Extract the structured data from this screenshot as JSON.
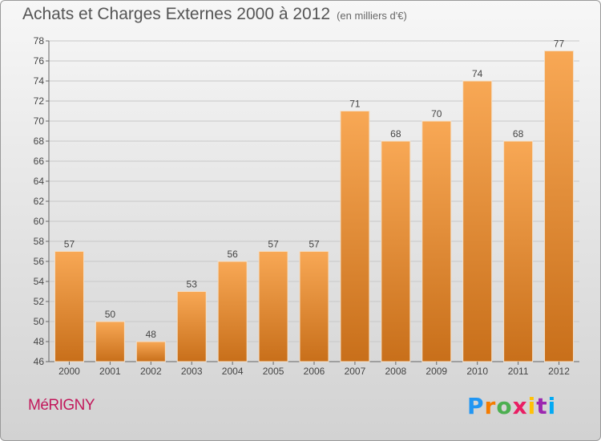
{
  "header": {
    "title": "Achats et Charges Externes 2000 à 2012",
    "unit": "(en milliers d'€)"
  },
  "footer": {
    "commune": "MéRIGNY",
    "logo_letters": [
      "P",
      "r",
      "o",
      "x",
      "i",
      "t",
      "i"
    ],
    "logo_colors": [
      "#2196f3",
      "#f57c00",
      "#4caf50",
      "#e91e63",
      "#ffc107",
      "#9c27b0",
      "#03a9f4"
    ]
  },
  "chart_data": {
    "type": "bar",
    "title": "Achats et Charges Externes 2000 à 2012",
    "subtitle": "(en milliers d'€)",
    "categories": [
      "2000",
      "2001",
      "2002",
      "2003",
      "2004",
      "2005",
      "2006",
      "2007",
      "2008",
      "2009",
      "2010",
      "2011",
      "2012"
    ],
    "values": [
      57,
      50,
      48,
      53,
      56,
      57,
      57,
      71,
      68,
      70,
      74,
      68,
      77
    ],
    "ylim": [
      46,
      78
    ],
    "yticks": [
      46,
      48,
      50,
      52,
      54,
      56,
      58,
      60,
      62,
      64,
      66,
      68,
      70,
      72,
      74,
      76,
      78
    ],
    "grid": true,
    "colors": {
      "bar_light": "#f8a855",
      "bar_dark": "#c86f1a"
    }
  }
}
